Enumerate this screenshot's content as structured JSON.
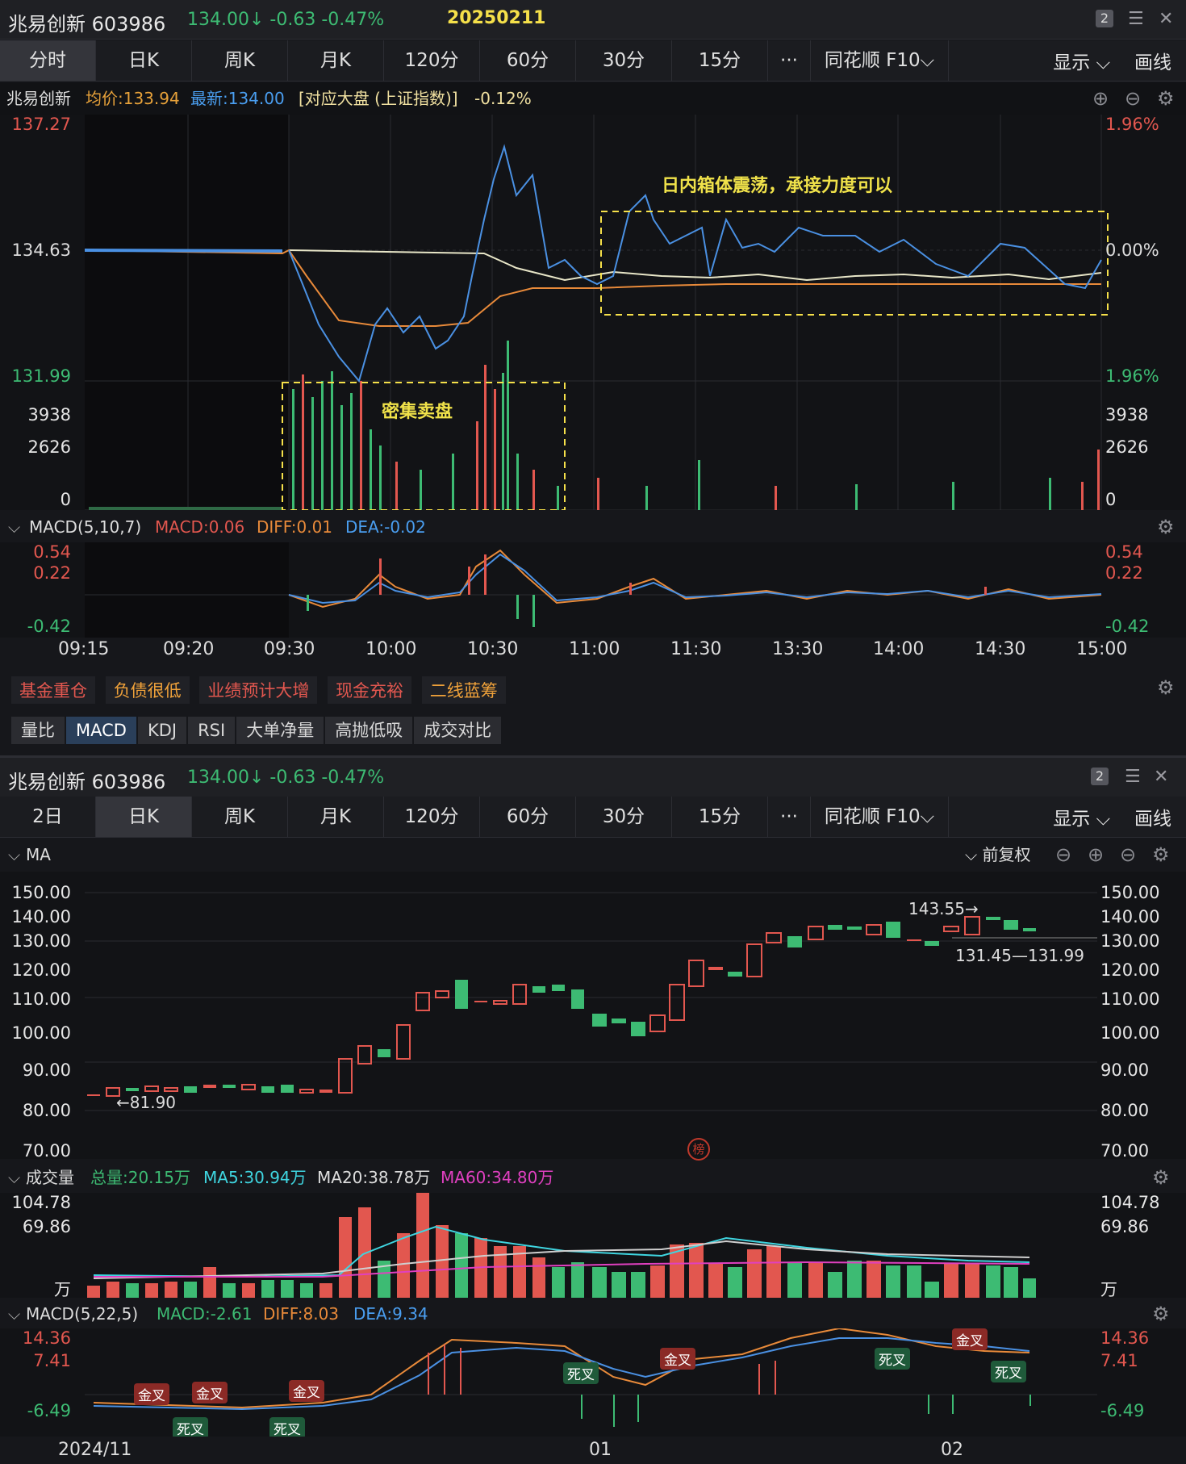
{
  "top": {
    "stock": "兆易创新 603986",
    "price": "134.00↓ -0.63  -0.47%",
    "date": "20250211",
    "badge": "2",
    "tabs": [
      "分时",
      "日K",
      "周K",
      "月K",
      "120分",
      "60分",
      "30分",
      "15分",
      "···",
      "同花顺 F10⌵"
    ],
    "display_label": "显示",
    "draw_label": "画线",
    "info": {
      "name": "兆易创新",
      "avg": "均价:133.94",
      "latest": "最新:134.00",
      "index": "[对应大盘 (上证指数)]",
      "index_chg": "-0.12%"
    },
    "price_axis_left": [
      "137.27",
      "134.63",
      "131.99"
    ],
    "price_axis_right": [
      "1.96%",
      "0.00%",
      "1.96%"
    ],
    "vol_axis": [
      "3938",
      "2626",
      "0"
    ],
    "box_label": "日内箱体震荡，承接力度可以",
    "vol_box_label": "密集卖盘",
    "macd_title": "MACD(5,10,7)",
    "macd_val": "MACD:0.06",
    "diff": "DIFF:0.01",
    "dea": "DEA:-0.02",
    "macd_axis": [
      "0.54",
      "0.22",
      "-0.42"
    ],
    "time_labels": [
      "09:15",
      "09:20",
      "09:30",
      "10:00",
      "10:30",
      "11:00",
      "11:30",
      "13:30",
      "14:00",
      "14:30",
      "15:00"
    ],
    "tags": [
      "基金重仓",
      "负债很低",
      "业绩预计大增",
      "现金充裕",
      "二线蓝筹"
    ],
    "indicators": [
      "量比",
      "MACD",
      "KDJ",
      "RSI",
      "大单净量",
      "高抛低吸",
      "成交对比"
    ]
  },
  "bottom": {
    "stock": "兆易创新 603986",
    "price": "134.00↓ -0.63  -0.47%",
    "badge": "2",
    "tabs": [
      "2日",
      "日K",
      "周K",
      "月K",
      "120分",
      "60分",
      "30分",
      "15分",
      "···",
      "同花顺 F10⌵"
    ],
    "display_label": "显示",
    "draw_label": "画线",
    "ma_label": "MA",
    "adjust": "前复权",
    "price_axis": [
      "150.00",
      "140.00",
      "130.00",
      "120.00",
      "110.00",
      "100.00",
      "90.00",
      "80.00",
      "70.00"
    ],
    "high_note": "143.55→",
    "low_note": "←81.90",
    "last_note": "131.45—131.99",
    "vol_title": "成交量",
    "vol_total": "总量:20.15万",
    "ma5": "MA5:30.94万",
    "ma20": "MA20:38.78万",
    "ma60": "MA60:34.80万",
    "vol_axis": [
      "104.78",
      "69.86",
      "万"
    ],
    "macd_title": "MACD(5,22,5)",
    "macd_val": "MACD:-2.61",
    "diff": "DIFF:8.03",
    "dea": "DEA:9.34",
    "macd_axis": [
      "14.36",
      "7.41",
      "-6.49"
    ],
    "date_labels": [
      "2024/11",
      "01",
      "02"
    ],
    "signals": [
      "金叉",
      "金叉",
      "死叉",
      "金叉",
      "死叉",
      "死叉",
      "金叉",
      "死叉",
      "金叉",
      "死叉"
    ],
    "rank_icon": "榜"
  },
  "colors": {
    "up": "#e2574f",
    "down": "#3dbb73",
    "price_line": "#4a90e2",
    "avg_line": "#e88a3a",
    "yellow": "#f5e04a"
  }
}
